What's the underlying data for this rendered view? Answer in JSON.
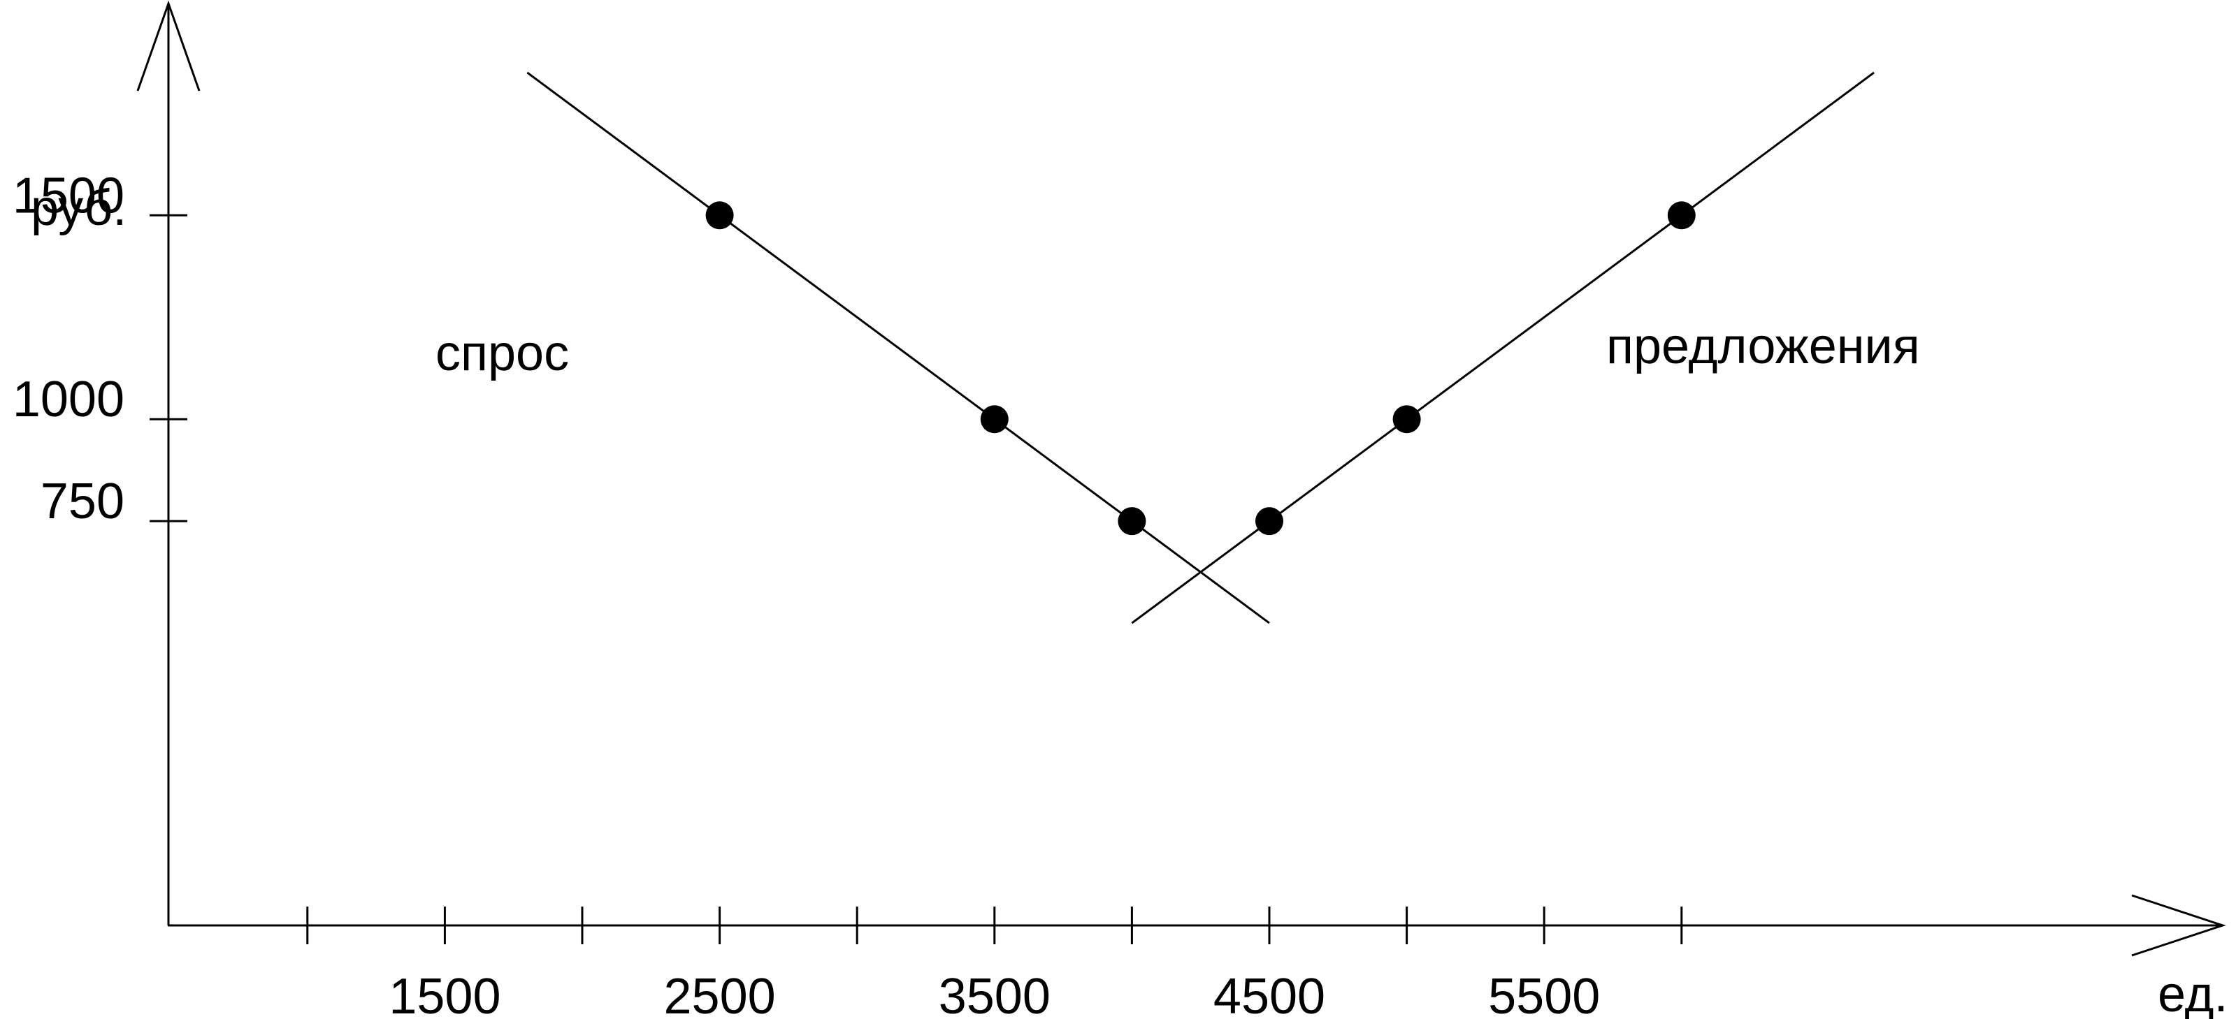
{
  "chart_data": {
    "type": "line",
    "title": "",
    "xlabel": "ед.",
    "ylabel": "руб.",
    "x_ticks": [
      1000,
      1500,
      2000,
      2500,
      3000,
      3500,
      4000,
      4500,
      5000,
      5500,
      6000
    ],
    "x_tick_labels": [
      {
        "x": 1500,
        "label": "1500"
      },
      {
        "x": 2500,
        "label": "2500"
      },
      {
        "x": 3500,
        "label": "3500"
      },
      {
        "x": 4500,
        "label": "4500"
      },
      {
        "x": 5500,
        "label": "5500"
      }
    ],
    "y_tick_labels": [
      {
        "y": 750,
        "label": "750"
      },
      {
        "y": 1000,
        "label": "1000"
      },
      {
        "y": 1500,
        "label": "1500"
      }
    ],
    "series": [
      {
        "name": "спрос",
        "points": [
          {
            "x": 2500,
            "y": 1500
          },
          {
            "x": 3500,
            "y": 1000
          },
          {
            "x": 4000,
            "y": 750
          }
        ],
        "line": {
          "x_start": 1800,
          "x_end": 4500
        }
      },
      {
        "name": "предложения",
        "points": [
          {
            "x": 4500,
            "y": 750
          },
          {
            "x": 5000,
            "y": 1000
          },
          {
            "x": 6000,
            "y": 1500
          }
        ],
        "line": {
          "x_start": 4000,
          "x_end": 6700
        }
      }
    ],
    "grid": false,
    "legend": "none",
    "color": "#000000"
  }
}
